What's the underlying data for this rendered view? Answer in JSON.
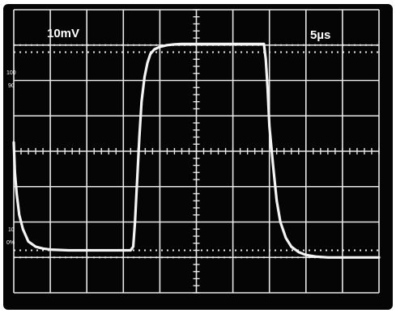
{
  "chart_data": {
    "type": "line",
    "title": "",
    "xlabel": "",
    "ylabel": "",
    "volts_per_div": "10mV",
    "time_per_div": "5µs",
    "graticule_markers": [
      "100",
      "90",
      "10",
      "0%"
    ],
    "xlim": [
      0,
      10
    ],
    "ylim": [
      0,
      8
    ],
    "grid": true,
    "trace_color": "#f4f4f4",
    "screen_color": "#050505",
    "grid_color": "#e8e8e8",
    "series": [
      {
        "x": [
          0.0,
          0.03,
          0.08,
          0.15,
          0.25,
          0.4,
          0.6,
          0.8,
          1.0,
          1.5,
          2.0,
          2.5,
          3.0,
          3.2,
          3.27,
          3.32,
          3.38,
          3.44,
          3.5,
          3.58,
          3.66,
          3.74,
          3.85,
          4.0,
          4.2,
          4.4,
          4.6,
          4.8,
          5.0,
          5.5,
          6.0,
          6.5,
          6.85,
          6.9,
          6.95,
          7.0,
          7.1,
          7.2,
          7.3,
          7.45,
          7.6,
          7.8,
          8.0,
          8.3,
          8.6,
          9.0,
          9.5,
          10.0
        ],
        "y": [
          4.25,
          3.4,
          2.8,
          2.2,
          1.8,
          1.45,
          1.3,
          1.25,
          1.22,
          1.2,
          1.2,
          1.2,
          1.2,
          1.2,
          1.3,
          2.0,
          3.2,
          4.4,
          5.4,
          6.1,
          6.5,
          6.75,
          6.88,
          6.95,
          7.0,
          7.02,
          7.03,
          7.03,
          7.03,
          7.03,
          7.03,
          7.03,
          7.03,
          6.6,
          5.8,
          4.7,
          3.6,
          2.6,
          2.0,
          1.55,
          1.3,
          1.15,
          1.07,
          1.02,
          1.0,
          1.0,
          1.0,
          1.0
        ]
      }
    ]
  }
}
